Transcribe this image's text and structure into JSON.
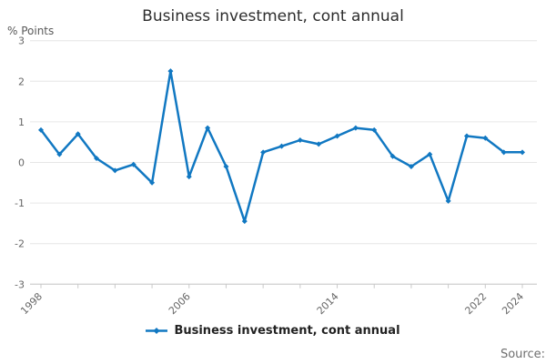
{
  "header": {
    "title": "Business investment, cont annual"
  },
  "axes": {
    "y_unit_label": "% Points"
  },
  "legend": {
    "label": "Business investment, cont annual"
  },
  "footer": {
    "source_label": "Source:"
  },
  "colors": {
    "line": "#1178c2",
    "grid": "#e6e6e6",
    "axis": "#c9c9c9",
    "tick_label": "#666666",
    "title": "#2d2d2d",
    "legend_text": "#222222",
    "source_text": "#6e6e6e"
  },
  "chart_data": {
    "type": "line",
    "title": "Business investment, cont annual",
    "ylabel": "% Points",
    "xlabel": "",
    "x": [
      1998,
      1999,
      2000,
      2001,
      2002,
      2003,
      2004,
      2005,
      2006,
      2007,
      2008,
      2009,
      2010,
      2011,
      2012,
      2013,
      2014,
      2015,
      2016,
      2017,
      2018,
      2019,
      2020,
      2021,
      2022,
      2023,
      2024
    ],
    "values": [
      0.8,
      0.2,
      0.7,
      0.1,
      -0.2,
      -0.05,
      -0.5,
      2.25,
      -0.35,
      0.85,
      -0.1,
      -1.45,
      0.25,
      0.4,
      0.55,
      0.45,
      0.65,
      0.85,
      0.8,
      0.15,
      -0.1,
      0.2,
      -0.95,
      0.65,
      0.6,
      0.25,
      0.25
    ],
    "ylim": [
      -3,
      3
    ],
    "yticks": [
      3,
      2,
      1,
      0,
      -1,
      -2,
      -3
    ],
    "xtick_step_years": 2,
    "xtick_labels_shown": [
      "1998",
      "2006",
      "2014",
      "2022",
      "2024"
    ],
    "legend": "Business investment, cont annual",
    "legend_position": "bottom",
    "grid": "horizontal",
    "marker": "diamond"
  }
}
